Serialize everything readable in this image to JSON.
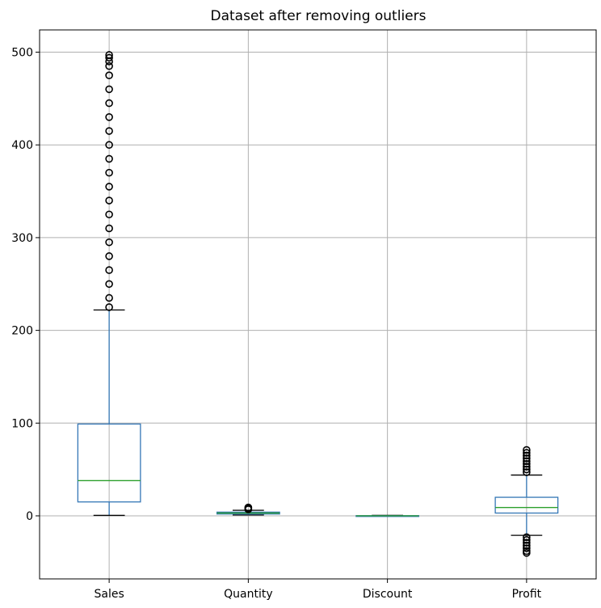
{
  "chart_data": {
    "type": "box",
    "title": "Dataset after removing outliers",
    "xlabel": "",
    "ylabel": "",
    "ylim": [
      -68,
      524
    ],
    "yticks": [
      0,
      100,
      200,
      300,
      400,
      500
    ],
    "grid": true,
    "colors": {
      "box": "#3477b6",
      "median": "#2ca02c",
      "whisker": "#3477b6",
      "cap": "#000000",
      "flier": "#000000",
      "grid": "#b0b0b0"
    },
    "categories": [
      "Sales",
      "Quantity",
      "Discount",
      "Profit"
    ],
    "boxes": [
      {
        "name": "Sales",
        "whisker_low": 0.5,
        "q1": 15,
        "median": 38,
        "q3": 99,
        "whisker_high": 222,
        "fliers_low": [],
        "fliers_high": [
          225,
          235,
          250,
          265,
          280,
          295,
          310,
          325,
          340,
          355,
          370,
          385,
          400,
          415,
          430,
          445,
          460,
          475,
          485,
          490,
          494,
          497
        ]
      },
      {
        "name": "Quantity",
        "whisker_low": 1,
        "q1": 2,
        "median": 3,
        "q3": 4,
        "whisker_high": 6,
        "fliers_low": [],
        "fliers_high": [
          7,
          8,
          9
        ]
      },
      {
        "name": "Discount",
        "whisker_low": 0,
        "q1": 0,
        "median": 0,
        "q3": 0.2,
        "whisker_high": 0.5,
        "fliers_low": [],
        "fliers_high": []
      },
      {
        "name": "Profit",
        "whisker_low": -21,
        "q1": 3,
        "median": 9,
        "q3": 20,
        "whisker_high": 44,
        "fliers_low": [
          -23,
          -26,
          -29,
          -32,
          -35,
          -38,
          -40
        ],
        "fliers_high": [
          47,
          50,
          53,
          56,
          59,
          62,
          65,
          68,
          71
        ]
      }
    ]
  }
}
